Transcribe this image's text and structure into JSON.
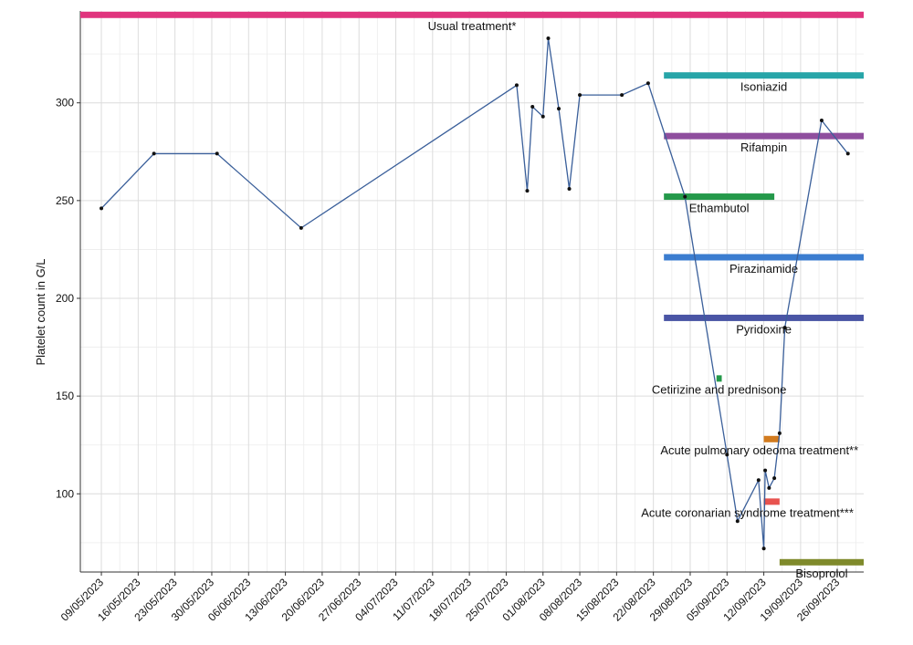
{
  "chart_data": {
    "type": "line",
    "title": "",
    "xlabel": "",
    "ylabel": "Platelet count in G/L",
    "y_ticks": [
      100,
      150,
      200,
      250,
      300
    ],
    "ylim": [
      60,
      347
    ],
    "xlim": [
      "2023-05-05",
      "2023-10-01"
    ],
    "x_tick_labels": [
      {
        "date": "2023-05-09",
        "label": "09/05/2023"
      },
      {
        "date": "2023-05-16",
        "label": "16/05/2023"
      },
      {
        "date": "2023-05-23",
        "label": "23/05/2023"
      },
      {
        "date": "2023-05-30",
        "label": "30/05/2023"
      },
      {
        "date": "2023-06-06",
        "label": "06/06/2023"
      },
      {
        "date": "2023-06-13",
        "label": "13/06/2023"
      },
      {
        "date": "2023-06-20",
        "label": "20/06/2023"
      },
      {
        "date": "2023-06-27",
        "label": "27/06/2023"
      },
      {
        "date": "2023-07-04",
        "label": "04/07/2023"
      },
      {
        "date": "2023-07-11",
        "label": "11/07/2023"
      },
      {
        "date": "2023-07-18",
        "label": "18/07/2023"
      },
      {
        "date": "2023-07-25",
        "label": "25/07/2023"
      },
      {
        "date": "2023-08-01",
        "label": "01/08/2023"
      },
      {
        "date": "2023-08-08",
        "label": "08/08/2023"
      },
      {
        "date": "2023-08-15",
        "label": "15/08/2023"
      },
      {
        "date": "2023-08-22",
        "label": "22/08/2023"
      },
      {
        "date": "2023-08-29",
        "label": "29/08/2023"
      },
      {
        "date": "2023-09-05",
        "label": "05/09/2023"
      },
      {
        "date": "2023-09-12",
        "label": "12/09/2023"
      },
      {
        "date": "2023-09-19",
        "label": "19/09/2023"
      },
      {
        "date": "2023-09-26",
        "label": "26/09/2023"
      }
    ],
    "grid": true,
    "series": [
      {
        "color": "#3a5f9a",
        "points": [
          {
            "date": "2023-05-09",
            "value": 246
          },
          {
            "date": "2023-05-19",
            "value": 274
          },
          {
            "date": "2023-05-31",
            "value": 274
          },
          {
            "date": "2023-06-16",
            "value": 236
          },
          {
            "date": "2023-07-27",
            "value": 309
          },
          {
            "date": "2023-07-29",
            "value": 255
          },
          {
            "date": "2023-07-30",
            "value": 298
          },
          {
            "date": "2023-08-01",
            "value": 293
          },
          {
            "date": "2023-08-02",
            "value": 333
          },
          {
            "date": "2023-08-04",
            "value": 297
          },
          {
            "date": "2023-08-06",
            "value": 256
          },
          {
            "date": "2023-08-08",
            "value": 304
          },
          {
            "date": "2023-08-16",
            "value": 304
          },
          {
            "date": "2023-08-21",
            "value": 310
          },
          {
            "date": "2023-08-28",
            "value": 252
          },
          {
            "date": "2023-09-05",
            "value": 120
          },
          {
            "date": "2023-09-07",
            "value": 86
          },
          {
            "date": "2023-09-11",
            "value": 107
          },
          {
            "date": "2023-09-12",
            "value": 72
          },
          {
            "date": "2023-09-12",
            "value": 112
          },
          {
            "date": "2023-09-13",
            "value": 103
          },
          {
            "date": "2023-09-14",
            "value": 108
          },
          {
            "date": "2023-09-15",
            "value": 131
          },
          {
            "date": "2023-09-16",
            "value": 185
          },
          {
            "date": "2023-09-23",
            "value": 291
          },
          {
            "date": "2023-09-28",
            "value": 274
          }
        ]
      }
    ],
    "treatments": [
      {
        "label": "Usual treatment*",
        "start": "2023-05-05",
        "end": "2023-10-01",
        "y": 345,
        "color": "#e0357e",
        "label_y": 339
      },
      {
        "label": "Isoniazid",
        "start": "2023-08-24",
        "end": "2023-10-01",
        "y": 314,
        "color": "#27a5a8",
        "label_y": 308
      },
      {
        "label": "Rifampin",
        "start": "2023-08-24",
        "end": "2023-10-01",
        "y": 283,
        "color": "#8f4e9e",
        "label_y": 277
      },
      {
        "label": "Ethambutol",
        "start": "2023-08-24",
        "end": "2023-09-14",
        "y": 252,
        "color": "#24994a",
        "label_y": 246
      },
      {
        "label": "Pirazinamide",
        "start": "2023-08-24",
        "end": "2023-10-01",
        "y": 221,
        "color": "#3b7dd0",
        "label_y": 215
      },
      {
        "label": "Pyridoxine",
        "start": "2023-08-24",
        "end": "2023-10-01",
        "y": 190,
        "color": "#4a55a5",
        "label_y": 184
      },
      {
        "label": "Cetirizine and prednisone",
        "start": "2023-09-03",
        "end": "2023-09-04",
        "y": 159,
        "color": "#24994a",
        "label_y": 153
      },
      {
        "label": "Acute pulmonary odeoma treatment**",
        "start": "2023-09-12",
        "end": "2023-09-15",
        "y": 128,
        "color": "#d27b1e",
        "label_y": 122
      },
      {
        "label": "Acute coronarian syndrome treatment***",
        "start": "2023-09-12",
        "end": "2023-09-15",
        "y": 96,
        "color": "#e8534f",
        "label_y": 90
      },
      {
        "label": "Bisoprolol",
        "start": "2023-09-15",
        "end": "2023-10-01",
        "y": 65,
        "color": "#7f8a2b",
        "label_y": 59
      }
    ]
  }
}
